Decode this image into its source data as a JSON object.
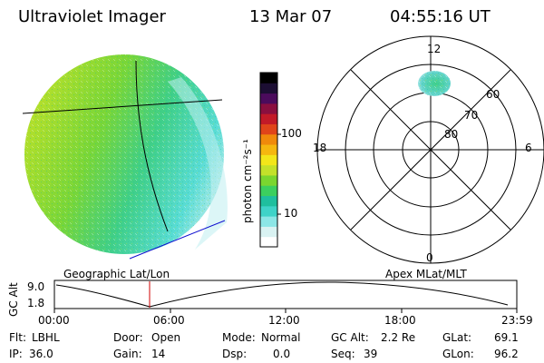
{
  "header": {
    "instrument": "Ultraviolet Imager",
    "date": "13 Mar 07",
    "time": "04:55:16 UT"
  },
  "panels": {
    "left_caption": "Geographic Lat/Lon",
    "right_caption": "Apex MLat/MLT"
  },
  "colorbar": {
    "label": "photon cm⁻²s⁻¹",
    "ticks": [
      "100",
      "10"
    ],
    "colors": [
      "#ffffff",
      "#d9f2f2",
      "#8ce6e6",
      "#3fd3c8",
      "#1fbf9e",
      "#3ccf5e",
      "#7ad62f",
      "#c3e12a",
      "#f2e61a",
      "#f5b70f",
      "#f08a0b",
      "#e0451a",
      "#c21a28",
      "#8a0f3f",
      "#4b0b5c",
      "#1c0e33",
      "#000000"
    ]
  },
  "polar": {
    "mlt_labels": [
      "12",
      "18",
      "6",
      "0"
    ],
    "mlat_labels": [
      "60",
      "70",
      "80"
    ]
  },
  "timeline": {
    "ylabel": "GC Alt",
    "y_ticks": [
      "9.0",
      "1.8"
    ],
    "x_ticks": [
      "00:00",
      "06:00",
      "12:00",
      "18:00",
      "23:59"
    ]
  },
  "status": {
    "flt_label": "Flt:",
    "flt_value": "LBHL",
    "ip_label": "IP:",
    "ip_value": "36.0",
    "door_label": "Door:",
    "door_value": "Open",
    "gain_label": "Gain:",
    "gain_value": "14",
    "mode_label": "Mode:",
    "mode_value": "Normal",
    "dsp_label": "Dsp:",
    "dsp_value": "0.0",
    "gcalt_label": "GC Alt:",
    "gcalt_value": "2.2 Re",
    "seq_label": "Seq:",
    "seq_value": "39",
    "glat_label": "GLat:",
    "glat_value": "69.1",
    "glon_label": "GLon:",
    "glon_value": "96.2"
  }
}
